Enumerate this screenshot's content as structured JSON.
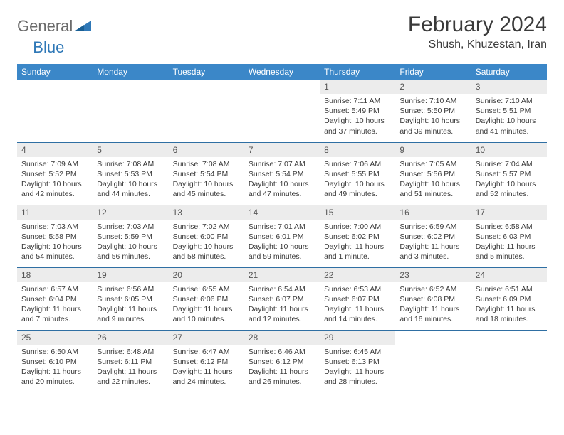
{
  "brand": {
    "part1": "General",
    "part2": "Blue"
  },
  "title": "February 2024",
  "location": "Shush, Khuzestan, Iran",
  "colors": {
    "header_bg": "#3b87c8",
    "header_text": "#ffffff",
    "rule": "#2f6fa3",
    "daynum_bg": "#ececec",
    "body_text": "#3a3a3a",
    "logo_gray": "#6b6b6b",
    "logo_blue": "#2f78b7"
  },
  "weekdays": [
    "Sunday",
    "Monday",
    "Tuesday",
    "Wednesday",
    "Thursday",
    "Friday",
    "Saturday"
  ],
  "weeks": [
    [
      null,
      null,
      null,
      null,
      {
        "n": "1",
        "sr": "7:11 AM",
        "ss": "5:49 PM",
        "dl": "10 hours and 37 minutes."
      },
      {
        "n": "2",
        "sr": "7:10 AM",
        "ss": "5:50 PM",
        "dl": "10 hours and 39 minutes."
      },
      {
        "n": "3",
        "sr": "7:10 AM",
        "ss": "5:51 PM",
        "dl": "10 hours and 41 minutes."
      }
    ],
    [
      {
        "n": "4",
        "sr": "7:09 AM",
        "ss": "5:52 PM",
        "dl": "10 hours and 42 minutes."
      },
      {
        "n": "5",
        "sr": "7:08 AM",
        "ss": "5:53 PM",
        "dl": "10 hours and 44 minutes."
      },
      {
        "n": "6",
        "sr": "7:08 AM",
        "ss": "5:54 PM",
        "dl": "10 hours and 45 minutes."
      },
      {
        "n": "7",
        "sr": "7:07 AM",
        "ss": "5:54 PM",
        "dl": "10 hours and 47 minutes."
      },
      {
        "n": "8",
        "sr": "7:06 AM",
        "ss": "5:55 PM",
        "dl": "10 hours and 49 minutes."
      },
      {
        "n": "9",
        "sr": "7:05 AM",
        "ss": "5:56 PM",
        "dl": "10 hours and 51 minutes."
      },
      {
        "n": "10",
        "sr": "7:04 AM",
        "ss": "5:57 PM",
        "dl": "10 hours and 52 minutes."
      }
    ],
    [
      {
        "n": "11",
        "sr": "7:03 AM",
        "ss": "5:58 PM",
        "dl": "10 hours and 54 minutes."
      },
      {
        "n": "12",
        "sr": "7:03 AM",
        "ss": "5:59 PM",
        "dl": "10 hours and 56 minutes."
      },
      {
        "n": "13",
        "sr": "7:02 AM",
        "ss": "6:00 PM",
        "dl": "10 hours and 58 minutes."
      },
      {
        "n": "14",
        "sr": "7:01 AM",
        "ss": "6:01 PM",
        "dl": "10 hours and 59 minutes."
      },
      {
        "n": "15",
        "sr": "7:00 AM",
        "ss": "6:02 PM",
        "dl": "11 hours and 1 minute."
      },
      {
        "n": "16",
        "sr": "6:59 AM",
        "ss": "6:02 PM",
        "dl": "11 hours and 3 minutes."
      },
      {
        "n": "17",
        "sr": "6:58 AM",
        "ss": "6:03 PM",
        "dl": "11 hours and 5 minutes."
      }
    ],
    [
      {
        "n": "18",
        "sr": "6:57 AM",
        "ss": "6:04 PM",
        "dl": "11 hours and 7 minutes."
      },
      {
        "n": "19",
        "sr": "6:56 AM",
        "ss": "6:05 PM",
        "dl": "11 hours and 9 minutes."
      },
      {
        "n": "20",
        "sr": "6:55 AM",
        "ss": "6:06 PM",
        "dl": "11 hours and 10 minutes."
      },
      {
        "n": "21",
        "sr": "6:54 AM",
        "ss": "6:07 PM",
        "dl": "11 hours and 12 minutes."
      },
      {
        "n": "22",
        "sr": "6:53 AM",
        "ss": "6:07 PM",
        "dl": "11 hours and 14 minutes."
      },
      {
        "n": "23",
        "sr": "6:52 AM",
        "ss": "6:08 PM",
        "dl": "11 hours and 16 minutes."
      },
      {
        "n": "24",
        "sr": "6:51 AM",
        "ss": "6:09 PM",
        "dl": "11 hours and 18 minutes."
      }
    ],
    [
      {
        "n": "25",
        "sr": "6:50 AM",
        "ss": "6:10 PM",
        "dl": "11 hours and 20 minutes."
      },
      {
        "n": "26",
        "sr": "6:48 AM",
        "ss": "6:11 PM",
        "dl": "11 hours and 22 minutes."
      },
      {
        "n": "27",
        "sr": "6:47 AM",
        "ss": "6:12 PM",
        "dl": "11 hours and 24 minutes."
      },
      {
        "n": "28",
        "sr": "6:46 AM",
        "ss": "6:12 PM",
        "dl": "11 hours and 26 minutes."
      },
      {
        "n": "29",
        "sr": "6:45 AM",
        "ss": "6:13 PM",
        "dl": "11 hours and 28 minutes."
      },
      null,
      null
    ]
  ],
  "labels": {
    "sunrise": "Sunrise: ",
    "sunset": "Sunset: ",
    "daylight": "Daylight: "
  }
}
